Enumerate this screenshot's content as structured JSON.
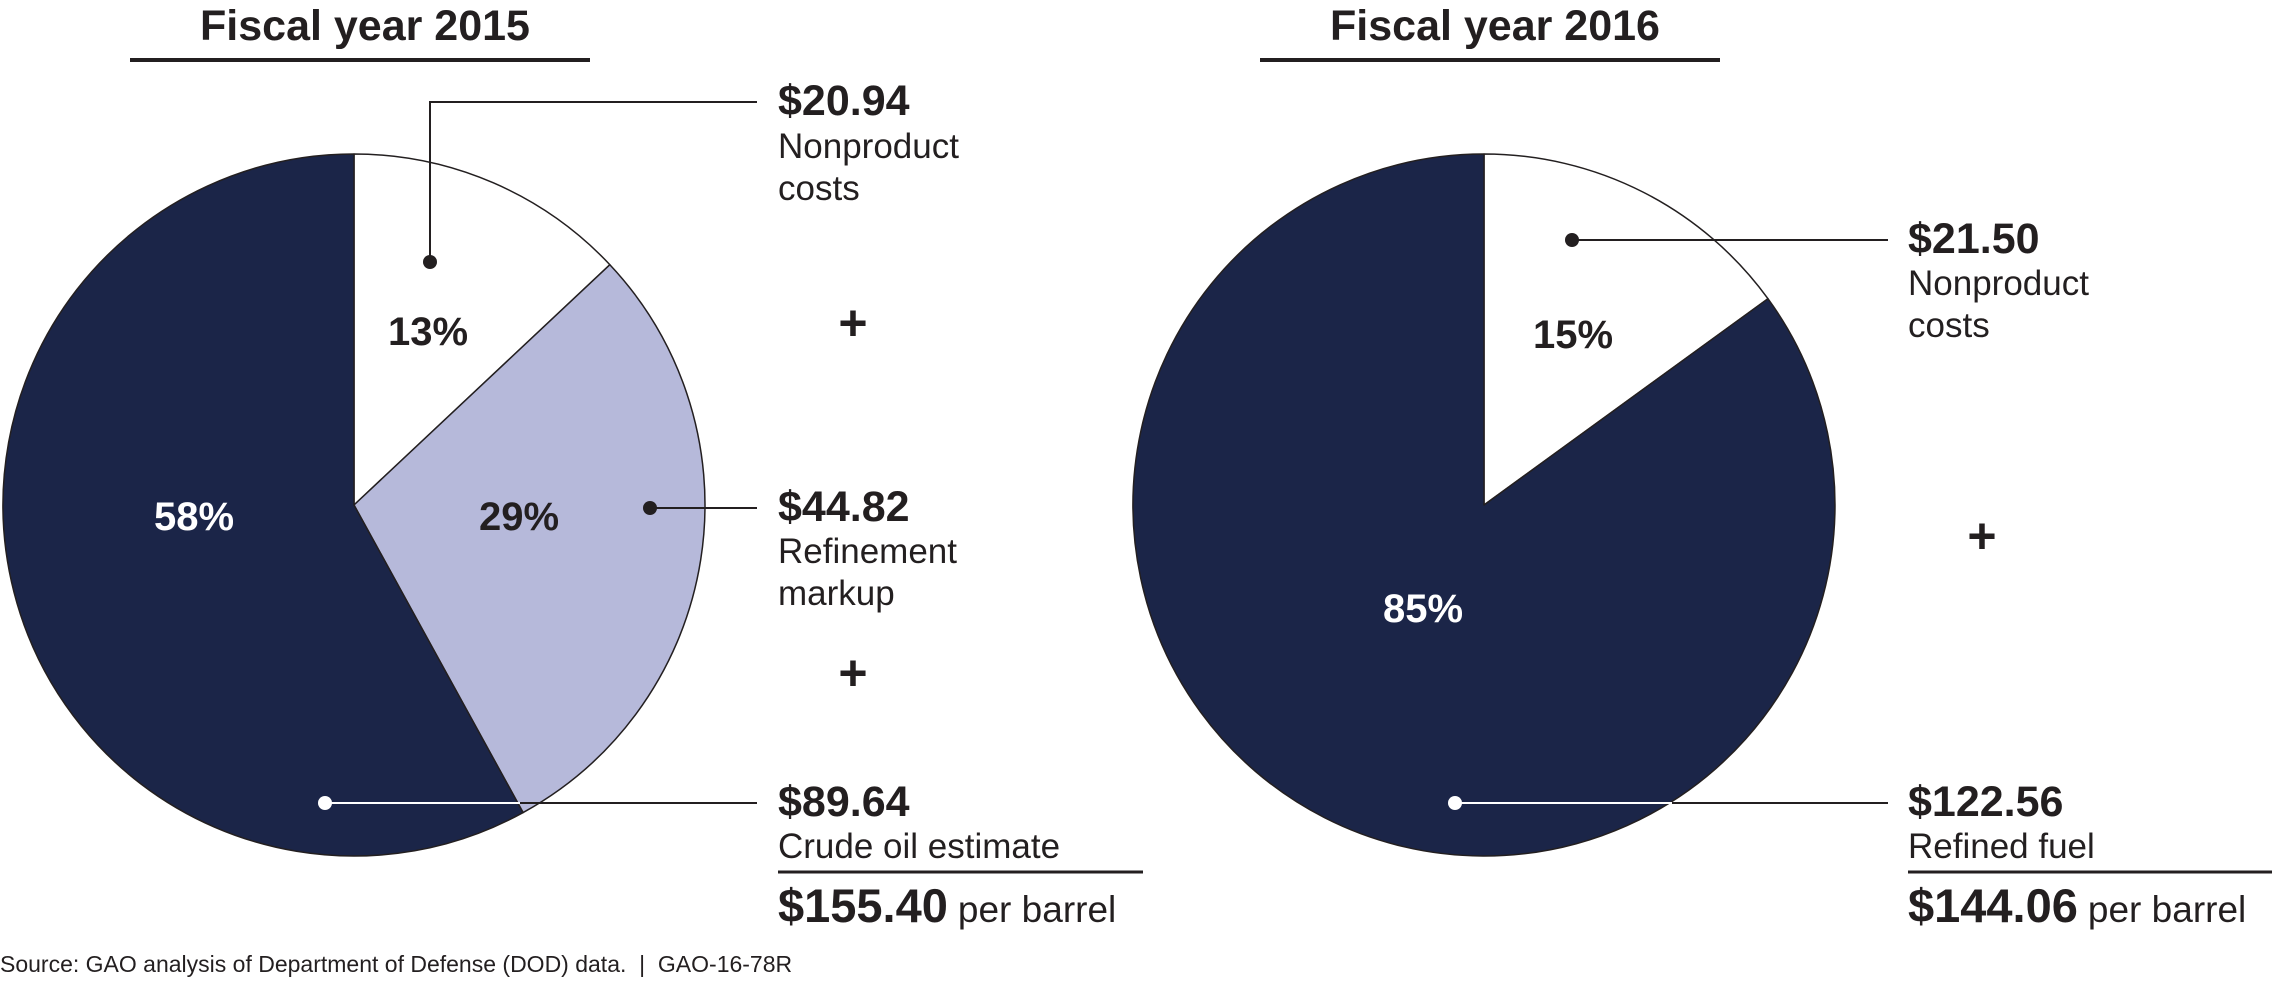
{
  "chart_data": [
    {
      "type": "pie",
      "title": "Fiscal year 2015",
      "slices": [
        {
          "label": "Nonproduct costs",
          "amount": "$20.94",
          "desc_lines": [
            "Nonproduct",
            "costs"
          ],
          "percent": 13,
          "percent_label": "13%",
          "color": "#ffffff"
        },
        {
          "label": "Refinement markup",
          "amount": "$44.82",
          "desc_lines": [
            "Refinement",
            "markup"
          ],
          "percent": 29,
          "percent_label": "29%",
          "color": "#b6b9da"
        },
        {
          "label": "Crude oil estimate",
          "amount": "$89.64",
          "desc_lines": [
            "Crude oil estimate"
          ],
          "percent": 58,
          "percent_label": "58%",
          "color": "#1b2548"
        }
      ],
      "operators": [
        "+",
        "+"
      ],
      "total": {
        "amount": "$155.40",
        "unit": "per barrel"
      }
    },
    {
      "type": "pie",
      "title": "Fiscal year 2016",
      "slices": [
        {
          "label": "Nonproduct costs",
          "amount": "$21.50",
          "desc_lines": [
            "Nonproduct",
            "costs"
          ],
          "percent": 15,
          "percent_label": "15%",
          "color": "#ffffff"
        },
        {
          "label": "Refined fuel",
          "amount": "$122.56",
          "desc_lines": [
            "Refined fuel"
          ],
          "percent": 85,
          "percent_label": "85%",
          "color": "#1b2548"
        }
      ],
      "operators": [
        "+"
      ],
      "total": {
        "amount": "$144.06",
        "unit": "per barrel"
      }
    }
  ],
  "source": "Source: GAO analysis of Department of Defense (DOD) data.  |  GAO-16-78R",
  "colors": {
    "navy": "#1b2548",
    "lavender": "#b6b9da",
    "ink": "#231f20"
  }
}
